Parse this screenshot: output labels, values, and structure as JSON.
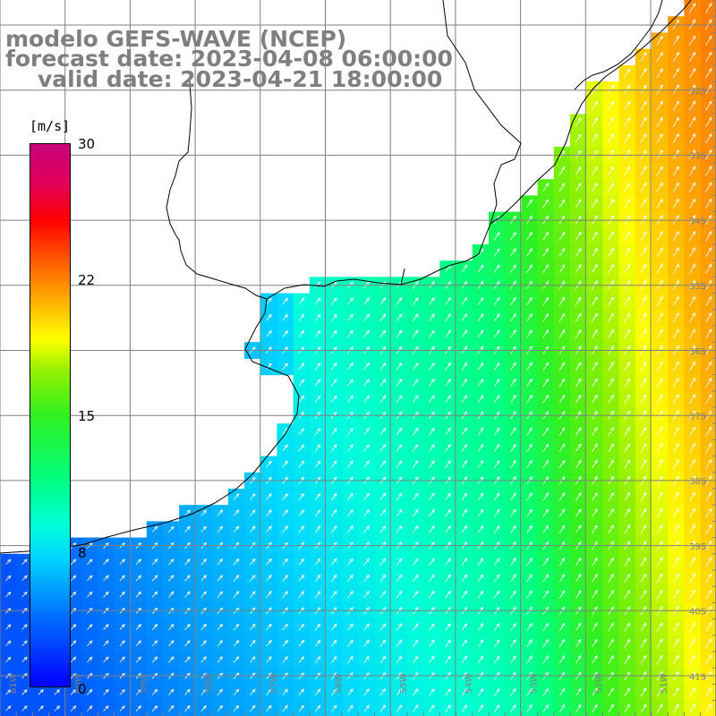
{
  "title": {
    "line1": "modelo GEFS-WAVE (NCEP)",
    "line2": "forecast date: 2023-04-08 06:00:00",
    "line3": "valid date: 2023-04-21 18:00:00"
  },
  "legend": {
    "unit": "[m/s]",
    "ticks": [
      "30",
      "22",
      "15",
      "8",
      "0"
    ],
    "scale_min": 0,
    "scale_max": 30,
    "colors": [
      "#0000ff",
      "#00a0ff",
      "#00ffff",
      "#00ff80",
      "#30f020",
      "#90f000",
      "#ffff00",
      "#ffb000",
      "#ff6000",
      "#ff0000",
      "#c8007a"
    ]
  },
  "map": {
    "lon_labels": [
      "61W",
      "60W",
      "59W",
      "58W",
      "57W",
      "56W",
      "55W",
      "54W",
      "53W",
      "52W",
      "51W"
    ],
    "lat_labels": [
      "32S",
      "33S",
      "34S",
      "35S",
      "36S",
      "37S",
      "38S",
      "39S",
      "40S",
      "41S"
    ],
    "grid_color": "#808080",
    "land_color": "#ffffff",
    "coast_color": "#000000"
  }
}
